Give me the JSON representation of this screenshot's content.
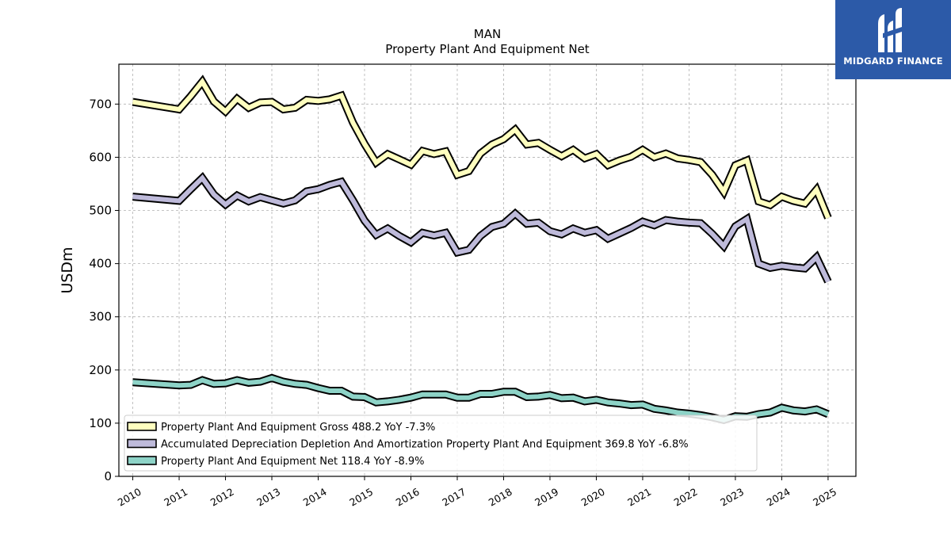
{
  "logo": {
    "text": "MIDGARD FINANCE",
    "icon": "midgard-m-logo-icon"
  },
  "chart_data": {
    "type": "line",
    "title": "MAN",
    "subtitle": "Property Plant And Equipment Net",
    "xlabel": "",
    "ylabel": "USDm",
    "xlim": [
      2009.7,
      2025.6
    ],
    "ylim": [
      0,
      775
    ],
    "xticks": [
      2010,
      2011,
      2012,
      2013,
      2014,
      2015,
      2016,
      2017,
      2018,
      2019,
      2020,
      2021,
      2022,
      2023,
      2024,
      2025
    ],
    "xtick_labels": [
      "2010",
      "2011",
      "2012",
      "2013",
      "2014",
      "2015",
      "2016",
      "2017",
      "2018",
      "2019",
      "2020",
      "2021",
      "2022",
      "2023",
      "2024",
      "2025"
    ],
    "yticks": [
      0,
      100,
      200,
      300,
      400,
      500,
      600,
      700
    ],
    "ytick_labels": [
      "0",
      "100",
      "200",
      "300",
      "400",
      "500",
      "600",
      "700"
    ],
    "grid": true,
    "legend_position": "bottom-left",
    "series": [
      {
        "name": "Property Plant And Equipment Gross",
        "legend": "Property Plant And Equipment Gross  488.2 YoY -7.3%",
        "color": "#ffffbf",
        "points": [
          [
            2010.0,
            704
          ],
          [
            2011.0,
            690
          ],
          [
            2011.25,
            715
          ],
          [
            2011.5,
            742
          ],
          [
            2011.75,
            705
          ],
          [
            2012.0,
            686
          ],
          [
            2012.25,
            710
          ],
          [
            2012.5,
            693
          ],
          [
            2012.75,
            703
          ],
          [
            2013.0,
            704
          ],
          [
            2013.25,
            690
          ],
          [
            2013.5,
            693
          ],
          [
            2013.75,
            708
          ],
          [
            2014.0,
            706
          ],
          [
            2014.25,
            709
          ],
          [
            2014.5,
            716
          ],
          [
            2014.75,
            665
          ],
          [
            2015.0,
            625
          ],
          [
            2015.25,
            590
          ],
          [
            2015.5,
            606
          ],
          [
            2015.75,
            596
          ],
          [
            2016.0,
            586
          ],
          [
            2016.25,
            612
          ],
          [
            2016.5,
            606
          ],
          [
            2016.75,
            611
          ],
          [
            2017.0,
            567
          ],
          [
            2017.25,
            574
          ],
          [
            2017.5,
            607
          ],
          [
            2017.75,
            624
          ],
          [
            2018.0,
            634
          ],
          [
            2018.25,
            652
          ],
          [
            2018.5,
            624
          ],
          [
            2018.75,
            627
          ],
          [
            2019.0,
            614
          ],
          [
            2019.25,
            602
          ],
          [
            2019.5,
            614
          ],
          [
            2019.75,
            598
          ],
          [
            2020.0,
            606
          ],
          [
            2020.25,
            585
          ],
          [
            2020.5,
            594
          ],
          [
            2020.75,
            601
          ],
          [
            2021.0,
            614
          ],
          [
            2021.25,
            600
          ],
          [
            2021.5,
            607
          ],
          [
            2021.75,
            598
          ],
          [
            2022.0,
            595
          ],
          [
            2022.25,
            591
          ],
          [
            2022.5,
            567
          ],
          [
            2022.75,
            535
          ],
          [
            2023.0,
            585
          ],
          [
            2023.25,
            594
          ],
          [
            2023.5,
            517
          ],
          [
            2023.75,
            510
          ],
          [
            2024.0,
            526
          ],
          [
            2024.25,
            518
          ],
          [
            2024.5,
            513
          ],
          [
            2024.75,
            539
          ],
          [
            2025.0,
            486
          ]
        ]
      },
      {
        "name": "Accumulated Depreciation Depletion And Amortization Property Plant And Equipment",
        "legend": "Accumulated Depreciation Depletion And Amortization Property Plant And Equipment  369.8 YoY -6.8%",
        "color": "#bebada",
        "points": [
          [
            2010.0,
            526
          ],
          [
            2011.0,
            518
          ],
          [
            2011.25,
            540
          ],
          [
            2011.5,
            561
          ],
          [
            2011.75,
            530
          ],
          [
            2012.0,
            511
          ],
          [
            2012.25,
            528
          ],
          [
            2012.5,
            517
          ],
          [
            2012.75,
            525
          ],
          [
            2013.0,
            519
          ],
          [
            2013.25,
            513
          ],
          [
            2013.5,
            519
          ],
          [
            2013.75,
            536
          ],
          [
            2014.0,
            540
          ],
          [
            2014.25,
            548
          ],
          [
            2014.5,
            554
          ],
          [
            2014.75,
            519
          ],
          [
            2015.0,
            481
          ],
          [
            2015.25,
            454
          ],
          [
            2015.5,
            466
          ],
          [
            2015.75,
            452
          ],
          [
            2016.0,
            440
          ],
          [
            2016.25,
            458
          ],
          [
            2016.5,
            453
          ],
          [
            2016.75,
            458
          ],
          [
            2017.0,
            421
          ],
          [
            2017.25,
            426
          ],
          [
            2017.5,
            452
          ],
          [
            2017.75,
            469
          ],
          [
            2018.0,
            475
          ],
          [
            2018.25,
            494
          ],
          [
            2018.5,
            475
          ],
          [
            2018.75,
            477
          ],
          [
            2019.0,
            461
          ],
          [
            2019.25,
            455
          ],
          [
            2019.5,
            466
          ],
          [
            2019.75,
            458
          ],
          [
            2020.0,
            463
          ],
          [
            2020.25,
            447
          ],
          [
            2020.5,
            457
          ],
          [
            2020.75,
            467
          ],
          [
            2021.0,
            479
          ],
          [
            2021.25,
            472
          ],
          [
            2021.5,
            482
          ],
          [
            2021.75,
            479
          ],
          [
            2022.0,
            477
          ],
          [
            2022.25,
            476
          ],
          [
            2022.5,
            456
          ],
          [
            2022.75,
            433
          ],
          [
            2023.0,
            470
          ],
          [
            2023.25,
            484
          ],
          [
            2023.5,
            400
          ],
          [
            2023.75,
            392
          ],
          [
            2024.0,
            396
          ],
          [
            2024.25,
            393
          ],
          [
            2024.5,
            391
          ],
          [
            2024.75,
            412
          ],
          [
            2025.0,
            366
          ]
        ]
      },
      {
        "name": "Property Plant And Equipment Net",
        "legend": "Property Plant And Equipment Net  118.4 YoY -8.9%",
        "color": "#8dd3c7",
        "points": [
          [
            2010.0,
            177
          ],
          [
            2011.0,
            171
          ],
          [
            2011.25,
            172
          ],
          [
            2011.5,
            181
          ],
          [
            2011.75,
            174
          ],
          [
            2012.0,
            175
          ],
          [
            2012.25,
            181
          ],
          [
            2012.5,
            176
          ],
          [
            2012.75,
            178
          ],
          [
            2013.0,
            185
          ],
          [
            2013.25,
            178
          ],
          [
            2013.5,
            174
          ],
          [
            2013.75,
            172
          ],
          [
            2014.0,
            166
          ],
          [
            2014.25,
            161
          ],
          [
            2014.5,
            161
          ],
          [
            2014.75,
            150
          ],
          [
            2015.0,
            149
          ],
          [
            2015.25,
            139
          ],
          [
            2015.5,
            141
          ],
          [
            2015.75,
            144
          ],
          [
            2016.0,
            148
          ],
          [
            2016.25,
            154
          ],
          [
            2016.5,
            154
          ],
          [
            2016.75,
            154
          ],
          [
            2017.0,
            148
          ],
          [
            2017.25,
            148
          ],
          [
            2017.5,
            155
          ],
          [
            2017.75,
            155
          ],
          [
            2018.0,
            159
          ],
          [
            2018.25,
            159
          ],
          [
            2018.5,
            149
          ],
          [
            2018.75,
            150
          ],
          [
            2019.0,
            153
          ],
          [
            2019.25,
            147
          ],
          [
            2019.5,
            148
          ],
          [
            2019.75,
            141
          ],
          [
            2020.0,
            144
          ],
          [
            2020.25,
            139
          ],
          [
            2020.5,
            137
          ],
          [
            2020.75,
            134
          ],
          [
            2021.0,
            135
          ],
          [
            2021.25,
            127
          ],
          [
            2021.5,
            124
          ],
          [
            2021.75,
            120
          ],
          [
            2022.0,
            118
          ],
          [
            2022.25,
            115
          ],
          [
            2022.5,
            111
          ],
          [
            2022.75,
            106
          ],
          [
            2023.0,
            113
          ],
          [
            2023.25,
            112
          ],
          [
            2023.5,
            117
          ],
          [
            2023.75,
            120
          ],
          [
            2024.0,
            129
          ],
          [
            2024.25,
            124
          ],
          [
            2024.5,
            122
          ],
          [
            2024.75,
            126
          ],
          [
            2025.0,
            117
          ]
        ]
      }
    ]
  }
}
